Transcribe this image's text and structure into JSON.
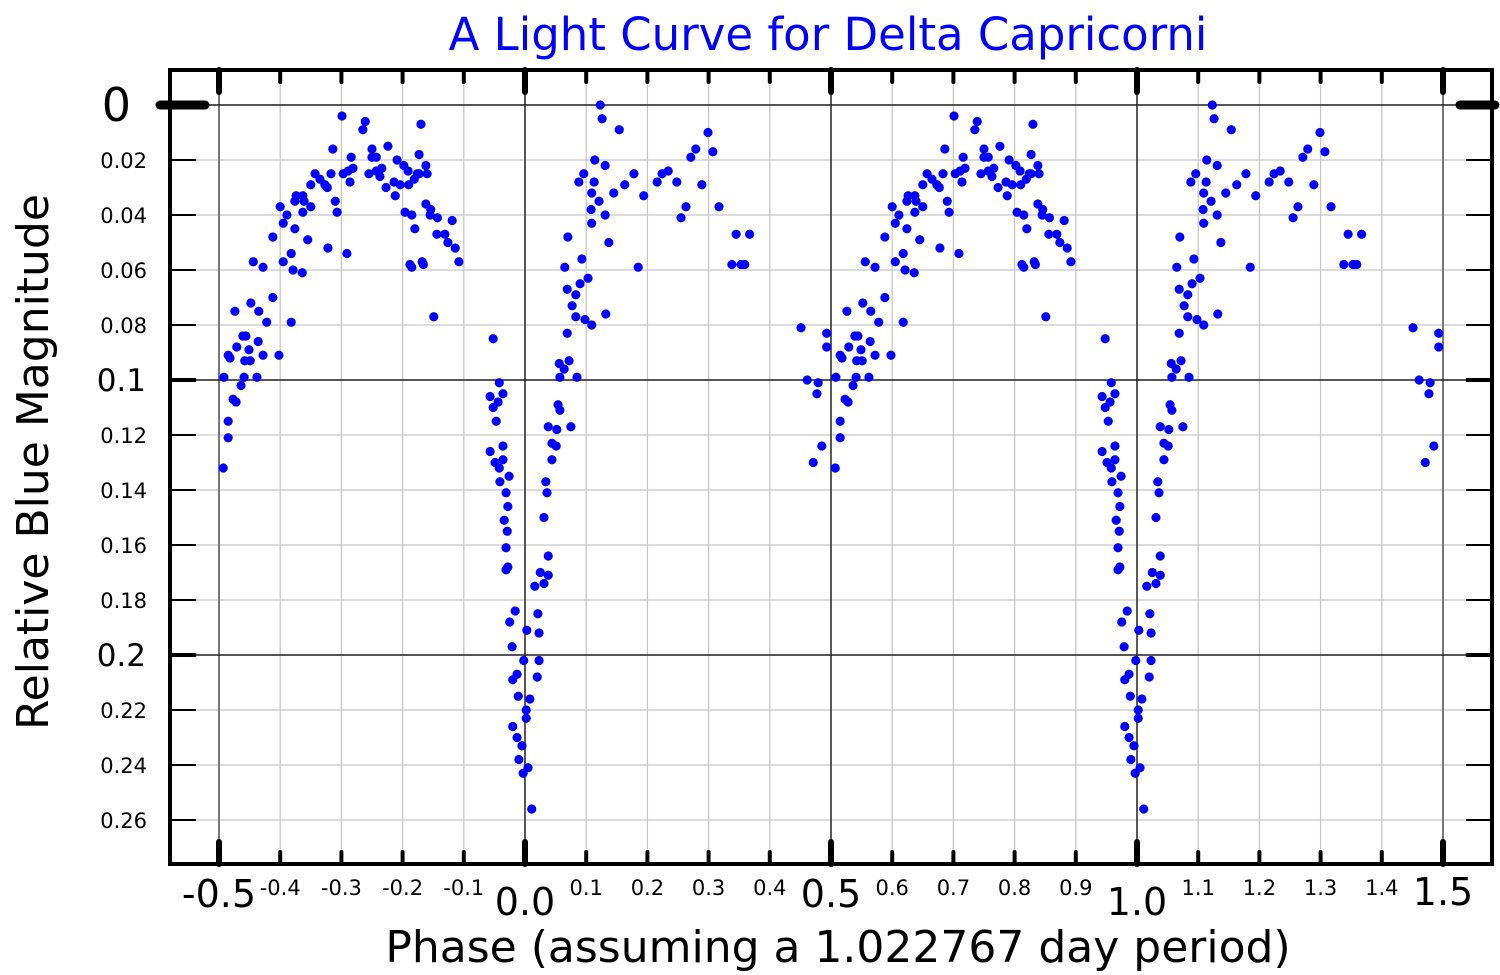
{
  "chart_data": {
    "type": "scatter",
    "title": "A Light Curve for Delta Capricorni",
    "xlabel": "Phase (assuming a 1.022767 day period)",
    "ylabel": "Relative Blue Magnitude",
    "xlim": [
      -0.58,
      1.58
    ],
    "ylim": [
      0.2755,
      -0.0127
    ],
    "y_inverted": true,
    "grid": true,
    "legend": "none",
    "point_color": "#0000ff",
    "title_color": "#0000ff",
    "x_ticks_major": [
      "-0.5",
      "0.0",
      "0.5",
      "1.0",
      "1.5"
    ],
    "x_ticks_minor": [
      "-0.4",
      "-0.3",
      "-0.2",
      "-0.1",
      "0.1",
      "0.2",
      "0.3",
      "0.4",
      "0.6",
      "0.7",
      "0.8",
      "0.9",
      "1.1",
      "1.2",
      "1.3",
      "1.4"
    ],
    "y_ticks_major": [
      "0",
      "0.1",
      "0.2"
    ],
    "y_ticks_minor": [
      "0.02",
      "0.04",
      "0.06",
      "0.08",
      "0.12",
      "0.14",
      "0.16",
      "0.18",
      "0.22",
      "0.24",
      "0.26"
    ],
    "phase_repeat": 1,
    "points": [
      [
        -0.493,
        0.132
      ],
      [
        -0.485,
        0.121
      ],
      [
        -0.485,
        0.115
      ],
      [
        -0.477,
        0.107
      ],
      [
        -0.472,
        0.108
      ],
      [
        -0.492,
        0.099
      ],
      [
        -0.482,
        0.092
      ],
      [
        -0.485,
        0.091
      ],
      [
        -0.464,
        0.102
      ],
      [
        -0.459,
        0.099
      ],
      [
        -0.471,
        0.088
      ],
      [
        -0.461,
        0.084
      ],
      [
        -0.456,
        0.084
      ],
      [
        -0.458,
        0.093
      ],
      [
        -0.449,
        0.093
      ],
      [
        -0.451,
        0.089
      ],
      [
        -0.438,
        0.099
      ],
      [
        -0.436,
        0.086
      ],
      [
        -0.428,
        0.091
      ],
      [
        -0.474,
        0.075
      ],
      [
        -0.448,
        0.072
      ],
      [
        -0.435,
        0.075
      ],
      [
        -0.422,
        0.079
      ],
      [
        -0.412,
        0.07
      ],
      [
        -0.402,
        0.091
      ],
      [
        -0.444,
        0.057
      ],
      [
        -0.428,
        0.059
      ],
      [
        -0.382,
        0.079
      ],
      [
        -0.412,
        0.048
      ],
      [
        -0.395,
        0.043
      ],
      [
        -0.4,
        0.037
      ],
      [
        -0.389,
        0.04
      ],
      [
        -0.376,
        0.045
      ],
      [
        -0.382,
        0.054
      ],
      [
        -0.379,
        0.06
      ],
      [
        -0.364,
        0.061
      ],
      [
        -0.395,
        0.057
      ],
      [
        -0.376,
        0.035
      ],
      [
        -0.374,
        0.033
      ],
      [
        -0.363,
        0.039
      ],
      [
        -0.355,
        0.049
      ],
      [
        -0.35,
        0.037
      ],
      [
        -0.361,
        0.035
      ],
      [
        -0.363,
        0.033
      ],
      [
        -0.35,
        0.029
      ],
      [
        -0.343,
        0.025
      ],
      [
        -0.335,
        0.027
      ],
      [
        -0.327,
        0.029
      ],
      [
        -0.317,
        0.025
      ],
      [
        -0.323,
        0.03
      ],
      [
        -0.322,
        0.052
      ],
      [
        -0.31,
        0.035
      ],
      [
        -0.307,
        0.039
      ],
      [
        -0.314,
        0.016
      ],
      [
        -0.299,
        0.004
      ],
      [
        -0.291,
        0.054
      ],
      [
        -0.297,
        0.025
      ],
      [
        -0.289,
        0.024
      ],
      [
        -0.286,
        0.028
      ],
      [
        -0.284,
        0.019
      ],
      [
        -0.281,
        0.023
      ],
      [
        -0.261,
        0.006
      ],
      [
        -0.265,
        0.009
      ],
      [
        -0.255,
        0.025
      ],
      [
        -0.25,
        0.019
      ],
      [
        -0.25,
        0.016
      ],
      [
        -0.243,
        0.019
      ],
      [
        -0.243,
        0.024
      ],
      [
        -0.237,
        0.026
      ],
      [
        -0.234,
        0.023
      ],
      [
        -0.227,
        0.03
      ],
      [
        -0.224,
        0.015
      ],
      [
        -0.212,
        0.033
      ],
      [
        -0.214,
        0.028
      ],
      [
        -0.209,
        0.02
      ],
      [
        -0.204,
        0.029
      ],
      [
        -0.196,
        0.039
      ],
      [
        -0.198,
        0.022
      ],
      [
        -0.191,
        0.024
      ],
      [
        -0.19,
        0.029
      ],
      [
        -0.188,
        0.058
      ],
      [
        -0.185,
        0.059
      ],
      [
        -0.185,
        0.04
      ],
      [
        -0.18,
        0.045
      ],
      [
        -0.173,
        0.025
      ],
      [
        -0.173,
        0.018
      ],
      [
        -0.17,
        0.007
      ],
      [
        -0.168,
        0.057
      ],
      [
        -0.166,
        0.058
      ],
      [
        -0.162,
        0.022
      ],
      [
        -0.162,
        0.036
      ],
      [
        -0.16,
        0.025
      ],
      [
        -0.155,
        0.04
      ],
      [
        -0.154,
        0.038
      ],
      [
        -0.149,
        0.077
      ],
      [
        -0.144,
        0.047
      ],
      [
        -0.143,
        0.041
      ],
      [
        -0.131,
        0.047
      ],
      [
        -0.126,
        0.05
      ],
      [
        -0.119,
        0.042
      ],
      [
        -0.114,
        0.052
      ],
      [
        -0.108,
        0.057
      ],
      [
        -0.176,
        0.025
      ],
      [
        -0.181,
        0.027
      ],
      [
        -0.052,
        0.085
      ],
      [
        -0.042,
        0.101
      ],
      [
        -0.036,
        0.105
      ],
      [
        -0.057,
        0.106
      ],
      [
        -0.044,
        0.108
      ],
      [
        -0.052,
        0.11
      ],
      [
        -0.047,
        0.115
      ],
      [
        -0.057,
        0.126
      ],
      [
        -0.036,
        0.124
      ],
      [
        -0.049,
        0.13
      ],
      [
        -0.036,
        0.129
      ],
      [
        -0.042,
        0.132
      ],
      [
        -0.026,
        0.135
      ],
      [
        -0.041,
        0.137
      ],
      [
        -0.031,
        0.141
      ],
      [
        -0.028,
        0.146
      ],
      [
        -0.034,
        0.151
      ],
      [
        -0.029,
        0.155
      ],
      [
        -0.031,
        0.161
      ],
      [
        -0.028,
        0.168
      ],
      [
        -0.031,
        0.169
      ],
      [
        -0.016,
        0.184
      ],
      [
        -0.025,
        0.188
      ],
      [
        -0.021,
        0.197
      ],
      [
        -0.002,
        0.202
      ],
      [
        -0.013,
        0.207
      ],
      [
        -0.02,
        0.209
      ],
      [
        -0.011,
        0.215
      ],
      [
        0.008,
        0.216
      ],
      [
        0.002,
        0.22
      ],
      [
        0.002,
        0.223
      ],
      [
        -0.02,
        0.226
      ],
      [
        -0.013,
        0.23
      ],
      [
        -0.005,
        0.233
      ],
      [
        -0.01,
        0.238
      ],
      [
        0.005,
        0.241
      ],
      [
        -0.003,
        0.243
      ],
      [
        0.011,
        0.256
      ],
      [
        0.003,
        0.191
      ],
      [
        0.023,
        0.192
      ],
      [
        0.021,
        0.185
      ],
      [
        0.016,
        0.175
      ],
      [
        0.025,
        0.17
      ],
      [
        0.038,
        0.171
      ],
      [
        0.031,
        0.174
      ],
      [
        0.023,
        0.202
      ],
      [
        0.02,
        0.208
      ],
      [
        0.038,
        0.164
      ],
      [
        0.031,
        0.15
      ],
      [
        0.036,
        0.141
      ],
      [
        0.034,
        0.137
      ],
      [
        0.044,
        0.129
      ],
      [
        0.051,
        0.124
      ],
      [
        0.044,
        0.123
      ],
      [
        0.038,
        0.117
      ],
      [
        0.052,
        0.118
      ],
      [
        0.075,
        0.117
      ],
      [
        0.057,
        0.111
      ],
      [
        0.054,
        0.109
      ],
      [
        0.085,
        0.099
      ],
      [
        0.057,
        0.099
      ],
      [
        0.064,
        0.096
      ],
      [
        0.056,
        0.094
      ],
      [
        0.072,
        0.093
      ],
      [
        0.069,
        0.083
      ],
      [
        0.065,
        0.059
      ],
      [
        0.07,
        0.048
      ],
      [
        0.093,
        0.056
      ],
      [
        0.103,
        0.063
      ],
      [
        0.09,
        0.065
      ],
      [
        0.069,
        0.067
      ],
      [
        0.083,
        0.069
      ],
      [
        0.077,
        0.073
      ],
      [
        0.083,
        0.077
      ],
      [
        0.098,
        0.078
      ],
      [
        0.109,
        0.08
      ],
      [
        0.132,
        0.076
      ],
      [
        0.123,
        0.0
      ],
      [
        0.126,
        0.005
      ],
      [
        0.154,
        0.009
      ],
      [
        0.114,
        0.02
      ],
      [
        0.131,
        0.022
      ],
      [
        0.096,
        0.025
      ],
      [
        0.088,
        0.028
      ],
      [
        0.113,
        0.028
      ],
      [
        0.109,
        0.032
      ],
      [
        0.121,
        0.035
      ],
      [
        0.145,
        0.032
      ],
      [
        0.163,
        0.029
      ],
      [
        0.178,
        0.025
      ],
      [
        0.194,
        0.033
      ],
      [
        0.108,
        0.038
      ],
      [
        0.131,
        0.04
      ],
      [
        0.109,
        0.043
      ],
      [
        0.137,
        0.05
      ],
      [
        0.185,
        0.059
      ],
      [
        0.216,
        0.028
      ],
      [
        0.224,
        0.025
      ],
      [
        0.234,
        0.024
      ],
      [
        0.248,
        0.028
      ],
      [
        0.263,
        0.037
      ],
      [
        0.255,
        0.041
      ],
      [
        0.271,
        0.019
      ],
      [
        0.279,
        0.016
      ],
      [
        0.299,
        0.01
      ],
      [
        0.307,
        0.017
      ],
      [
        0.289,
        0.029
      ],
      [
        0.317,
        0.037
      ],
      [
        0.345,
        0.047
      ],
      [
        0.367,
        0.047
      ],
      [
        0.338,
        0.058
      ],
      [
        0.353,
        0.058
      ],
      [
        0.359,
        0.058
      ],
      [
        0.451,
        0.081
      ],
      [
        0.493,
        0.083
      ],
      [
        0.493,
        0.088
      ],
      [
        0.461,
        0.1
      ],
      [
        0.479,
        0.101
      ],
      [
        0.477,
        0.105
      ],
      [
        0.485,
        0.124
      ],
      [
        0.471,
        0.13
      ]
    ]
  }
}
